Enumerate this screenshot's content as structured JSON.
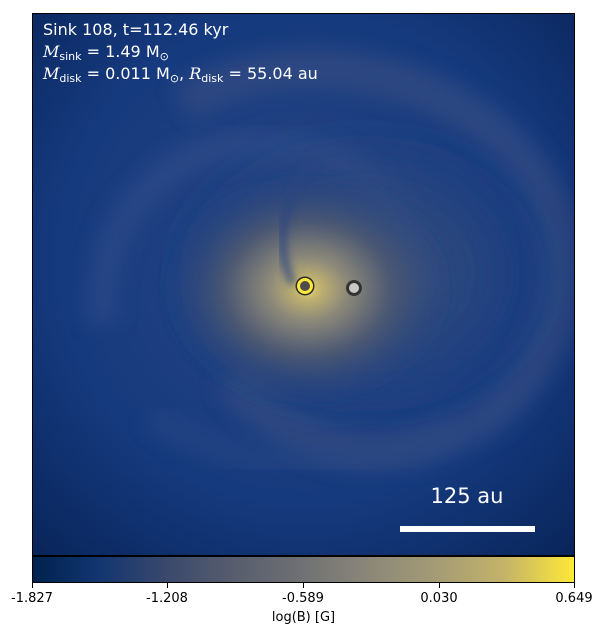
{
  "annotation": {
    "line1": "Sink 108, t=112.46 kyr",
    "m_sink_symbol": "M",
    "m_sink_sub": "sink",
    "m_sink_value": " = 1.49 M",
    "m_sink_unit_sub": "⊙",
    "m_disk_symbol": "M",
    "m_disk_sub": "disk",
    "m_disk_value": " = 0.011 M",
    "m_disk_unit_sub": "⊙",
    "sep": ", ",
    "r_disk_symbol": "R",
    "r_disk_sub": "disk",
    "r_disk_value": " = 55.04 au"
  },
  "scalebar": {
    "label": "125 au"
  },
  "colorbar": {
    "label": "log(B) [G]",
    "ticks": [
      "-1.827",
      "-1.208",
      "-0.589",
      "0.030",
      "0.649"
    ],
    "colormap": "cividis"
  },
  "colors": {
    "background": "#0d2f6e",
    "core": "#fee838",
    "sink_primary_ring": "#fee838",
    "sink_secondary_ring": "#333333"
  }
}
